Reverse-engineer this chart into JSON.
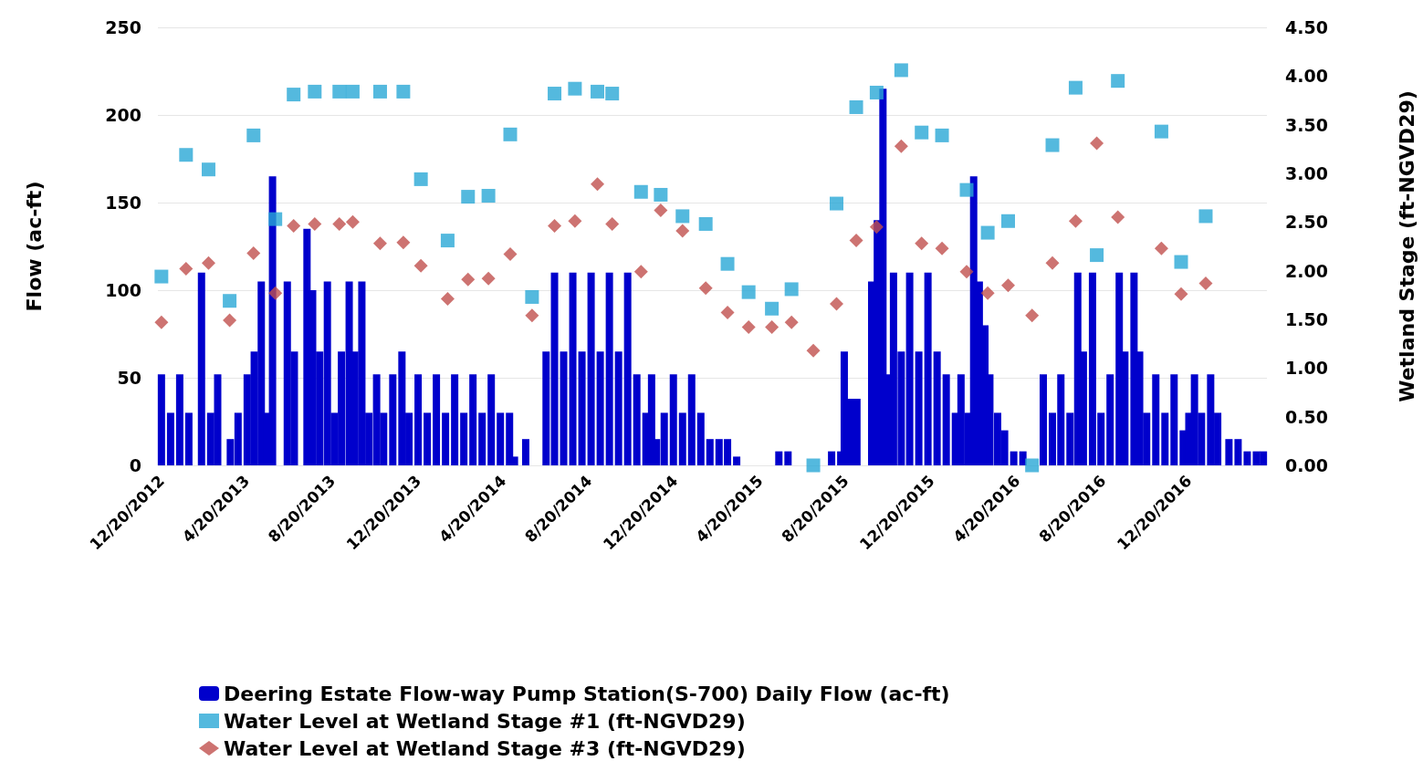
{
  "chart_data": {
    "type": "bar",
    "ylabel": "Flow (ac-ft)",
    "y2label": "Wetland Stage (ft-NGVD29)",
    "grid": "y",
    "legend": "bottom",
    "xlim": [
      "2012-12-15",
      "2017-04-10"
    ],
    "xticks": [
      {
        "value": "2012-12-20",
        "label": "12/20/2012"
      },
      {
        "value": "2013-04-20",
        "label": "4/20/2013"
      },
      {
        "value": "2013-08-20",
        "label": "8/20/2013"
      },
      {
        "value": "2013-12-20",
        "label": "12/20/2013"
      },
      {
        "value": "2014-04-20",
        "label": "4/20/2014"
      },
      {
        "value": "2014-08-20",
        "label": "8/20/2014"
      },
      {
        "value": "2014-12-20",
        "label": "12/20/2014"
      },
      {
        "value": "2015-04-20",
        "label": "4/20/2015"
      },
      {
        "value": "2015-08-20",
        "label": "8/20/2015"
      },
      {
        "value": "2015-12-20",
        "label": "12/20/2015"
      },
      {
        "value": "2016-04-20",
        "label": "4/20/2016"
      },
      {
        "value": "2016-08-20",
        "label": "8/20/2016"
      },
      {
        "value": "2016-12-20",
        "label": "12/20/2016"
      }
    ],
    "ylim": [
      0,
      250
    ],
    "yticks": [
      0,
      50,
      100,
      150,
      200,
      250
    ],
    "y2lim": [
      0,
      4.5
    ],
    "y2ticks": [
      {
        "value": 0,
        "label": "0.00"
      },
      {
        "value": 0.5,
        "label": "0.50"
      },
      {
        "value": 1,
        "label": "1.00"
      },
      {
        "value": 1.5,
        "label": "1.50"
      },
      {
        "value": 2,
        "label": "2.00"
      },
      {
        "value": 2.5,
        "label": "2.50"
      },
      {
        "value": 3,
        "label": "3.00"
      },
      {
        "value": 3.5,
        "label": "3.50"
      },
      {
        "value": 4,
        "label": "4.00"
      },
      {
        "value": 4.5,
        "label": "4.50"
      }
    ],
    "series": [
      {
        "name": "Deering Estate Flow-way Pump Station(S-700) Daily Flow (ac-ft)",
        "color": "#0000cc",
        "x": [
          "2012-12-20",
          "2013-01-02",
          "2013-01-15",
          "2013-01-28",
          "2013-02-15",
          "2013-02-28",
          "2013-03-10",
          "2013-03-23",
          "2013-03-28",
          "2013-04-08",
          "2013-04-21",
          "2013-05-01",
          "2013-05-11",
          "2013-05-19",
          "2013-05-27",
          "2013-06-06",
          "2013-06-17",
          "2013-06-27",
          "2013-07-07",
          "2013-07-15",
          "2013-07-23",
          "2013-08-02",
          "2013-08-13",
          "2013-08-23",
          "2013-09-02",
          "2013-09-13",
          "2013-09-21",
          "2013-10-01",
          "2013-10-11",
          "2013-10-22",
          "2013-11-01",
          "2013-11-14",
          "2013-11-27",
          "2013-12-07",
          "2013-12-20",
          "2014-01-02",
          "2014-01-15",
          "2014-01-28",
          "2014-02-10",
          "2014-02-23",
          "2014-03-08",
          "2014-03-21",
          "2014-04-03",
          "2014-04-16",
          "2014-04-29",
          "2014-05-06",
          "2014-05-22",
          "2014-06-01",
          "2014-06-20",
          "2014-07-02",
          "2014-07-15",
          "2014-07-28",
          "2014-08-10",
          "2014-08-23",
          "2014-09-05",
          "2014-09-18",
          "2014-10-01",
          "2014-10-14",
          "2014-10-27",
          "2014-11-09",
          "2014-11-17",
          "2014-11-24",
          "2014-12-05",
          "2014-12-18",
          "2014-12-31",
          "2015-01-13",
          "2015-01-26",
          "2015-02-08",
          "2015-02-21",
          "2015-03-05",
          "2015-03-18",
          "2015-03-31",
          "2015-04-13",
          "2015-04-26",
          "2015-05-17",
          "2015-05-30",
          "2015-06-12",
          "2015-06-30",
          "2015-07-26",
          "2015-07-31",
          "2015-08-13",
          "2015-08-18",
          "2015-08-26",
          "2015-09-05",
          "2015-09-16",
          "2015-09-26",
          "2015-10-04",
          "2015-10-12",
          "2015-10-19",
          "2015-10-27",
          "2015-11-07",
          "2015-11-19",
          "2015-12-02",
          "2015-12-15",
          "2015-12-28",
          "2016-01-10",
          "2016-01-23",
          "2016-01-31",
          "2016-02-10",
          "2016-02-18",
          "2016-02-26",
          "2016-03-05",
          "2016-03-12",
          "2016-03-23",
          "2016-04-02",
          "2016-04-15",
          "2016-04-28",
          "2016-05-06",
          "2016-05-27",
          "2016-06-09",
          "2016-06-21",
          "2016-07-04",
          "2016-07-15",
          "2016-07-23",
          "2016-08-05",
          "2016-08-17",
          "2016-08-30",
          "2016-09-12",
          "2016-09-20",
          "2016-10-03",
          "2016-10-11",
          "2016-10-21",
          "2016-11-03",
          "2016-11-16",
          "2016-11-29",
          "2016-12-12",
          "2016-12-20",
          "2016-12-28",
          "2017-01-07",
          "2017-01-20",
          "2017-01-30",
          "2017-02-15",
          "2017-02-28",
          "2017-03-13",
          "2017-03-26",
          "2017-04-05"
        ],
        "values": [
          52,
          30,
          52,
          30,
          110,
          30,
          52,
          0,
          15,
          30,
          52,
          65,
          105,
          30,
          165,
          0,
          105,
          65,
          0,
          135,
          100,
          65,
          105,
          30,
          65,
          105,
          65,
          105,
          30,
          52,
          30,
          52,
          65,
          30,
          52,
          30,
          52,
          30,
          52,
          30,
          52,
          30,
          52,
          30,
          30,
          5,
          15,
          0,
          65,
          110,
          65,
          110,
          65,
          110,
          65,
          110,
          65,
          110,
          52,
          30,
          52,
          15,
          30,
          52,
          30,
          52,
          30,
          15,
          15,
          15,
          5,
          0,
          0,
          0,
          8,
          8,
          0,
          0,
          0,
          8,
          8,
          65,
          38,
          38,
          0,
          105,
          140,
          215,
          52,
          110,
          65,
          110,
          65,
          110,
          65,
          52,
          30,
          52,
          30,
          165,
          105,
          80,
          52,
          30,
          20,
          8,
          8,
          0,
          52,
          30,
          52,
          30,
          110,
          65,
          110,
          30,
          52,
          110,
          65,
          110,
          65,
          30,
          52,
          30,
          52,
          20,
          30,
          52,
          30,
          52,
          30,
          15,
          15,
          8,
          8,
          8
        ]
      },
      {
        "name": "Water Level at Wetland Stage #1 (ft-NGVD29)",
        "type": "scatter",
        "axis": "y2",
        "marker": "square",
        "color": "#29a8d6",
        "x": [
          "2012-12-20",
          "2013-01-24",
          "2013-02-25",
          "2013-03-27",
          "2013-04-30",
          "2013-05-31",
          "2013-06-26",
          "2013-07-26",
          "2013-08-30",
          "2013-09-18",
          "2013-10-27",
          "2013-11-29",
          "2013-12-24",
          "2014-01-31",
          "2014-03-01",
          "2014-03-30",
          "2014-04-30",
          "2014-05-31",
          "2014-07-02",
          "2014-07-31",
          "2014-09-01",
          "2014-09-22",
          "2014-11-02",
          "2014-11-30",
          "2014-12-31",
          "2015-02-02",
          "2015-03-05",
          "2015-04-04",
          "2015-05-07",
          "2015-06-04",
          "2015-07-05",
          "2015-08-07",
          "2015-09-04",
          "2015-10-03",
          "2015-11-07",
          "2015-12-06",
          "2016-01-04",
          "2016-02-08",
          "2016-03-09",
          "2016-04-07",
          "2016-05-11",
          "2016-06-09",
          "2016-07-12",
          "2016-08-11",
          "2016-09-10",
          "2016-11-11",
          "2016-12-09",
          "2017-01-13"
        ],
        "values": [
          1.94,
          3.19,
          3.04,
          1.69,
          3.39,
          2.53,
          3.81,
          3.84,
          3.84,
          3.84,
          3.84,
          3.84,
          2.94,
          2.31,
          2.76,
          2.77,
          3.4,
          1.73,
          3.82,
          3.87,
          3.84,
          3.82,
          2.81,
          2.78,
          2.56,
          2.48,
          2.07,
          1.78,
          1.61,
          1.81,
          0,
          2.69,
          3.68,
          3.83,
          4.06,
          3.42,
          3.39,
          2.83,
          2.39,
          2.51,
          0,
          3.29,
          3.88,
          2.16,
          3.95,
          3.43,
          2.09,
          2.56
        ]
      },
      {
        "name": "Water Level at Wetland Stage #3 (ft-NGVD29)",
        "type": "scatter",
        "axis": "y2",
        "marker": "diamond",
        "color": "#c0504d",
        "x": [
          "2012-12-20",
          "2013-01-24",
          "2013-02-25",
          "2013-03-27",
          "2013-04-30",
          "2013-05-31",
          "2013-06-26",
          "2013-07-26",
          "2013-08-30",
          "2013-09-18",
          "2013-10-27",
          "2013-11-29",
          "2013-12-24",
          "2014-01-31",
          "2014-03-01",
          "2014-03-30",
          "2014-04-30",
          "2014-05-31",
          "2014-07-02",
          "2014-07-31",
          "2014-09-01",
          "2014-09-22",
          "2014-11-02",
          "2014-11-30",
          "2014-12-31",
          "2015-02-02",
          "2015-03-05",
          "2015-04-04",
          "2015-05-07",
          "2015-06-04",
          "2015-07-05",
          "2015-08-07",
          "2015-09-04",
          "2015-10-03",
          "2015-11-07",
          "2015-12-06",
          "2016-01-04",
          "2016-02-08",
          "2016-03-09",
          "2016-04-07",
          "2016-05-11",
          "2016-06-09",
          "2016-07-12",
          "2016-08-11",
          "2016-09-10",
          "2016-11-11",
          "2016-12-09",
          "2017-01-13"
        ],
        "values": [
          1.47,
          2.02,
          2.08,
          1.49,
          2.18,
          1.77,
          2.46,
          2.48,
          2.48,
          2.5,
          2.28,
          2.29,
          2.05,
          1.71,
          1.91,
          1.92,
          2.17,
          1.54,
          2.46,
          2.51,
          2.89,
          2.48,
          1.99,
          2.62,
          2.41,
          1.82,
          1.57,
          1.42,
          1.42,
          1.47,
          1.18,
          1.66,
          2.31,
          2.45,
          3.28,
          2.28,
          2.23,
          1.99,
          1.77,
          1.85,
          1.54,
          2.08,
          2.51,
          3.31,
          2.55,
          2.23,
          1.76,
          1.87
        ]
      }
    ]
  }
}
